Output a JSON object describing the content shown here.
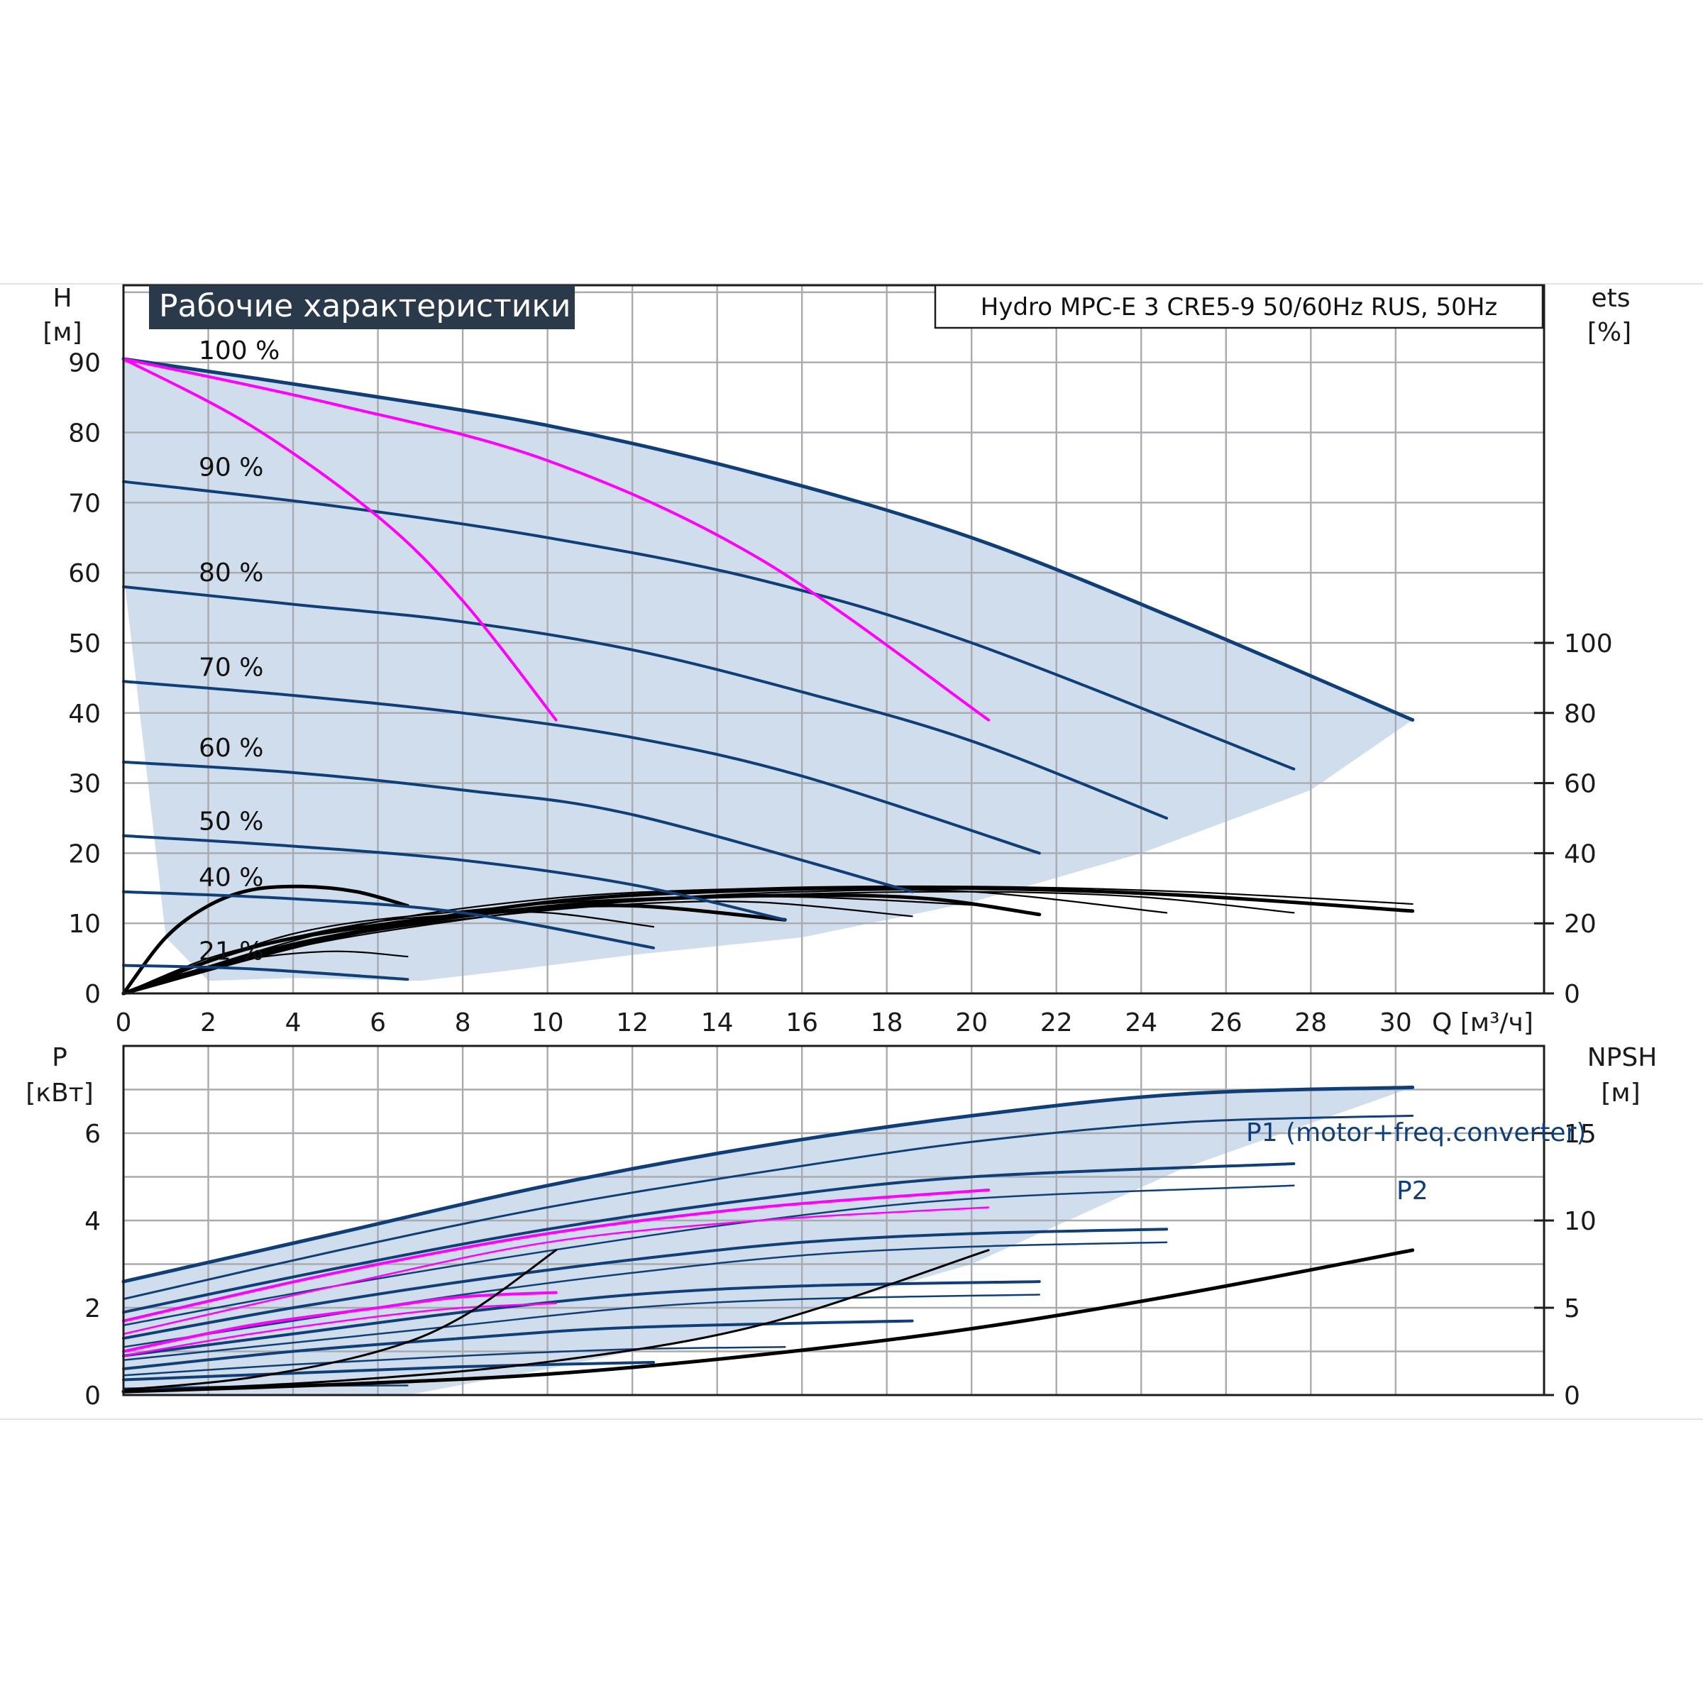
{
  "title_box": "Рабочие характеристики",
  "model_box": "Hydro MPC-E 3 CRE5-9 50/60Hz RUS, 50Hz",
  "colors": {
    "head": "#103f78",
    "bep": "#ff00ff",
    "eff": "#000000",
    "band": "#cfddec"
  },
  "chart_data": [
    {
      "type": "line",
      "panel": "top",
      "ylabel_top": "H",
      "ylabel_unit": "[м]",
      "y2label_top": "ets",
      "y2label_unit": "[%]",
      "xlabel": "Q [м³/ч]",
      "xlim": [
        0,
        33.5
      ],
      "ylim": [
        0,
        101
      ],
      "x_ticks": [
        0,
        2,
        4,
        6,
        8,
        10,
        12,
        14,
        16,
        18,
        20,
        22,
        24,
        26,
        28,
        30
      ],
      "y_ticks": [
        0,
        10,
        20,
        30,
        40,
        50,
        60,
        70,
        80,
        90
      ],
      "y2_ticks": [
        0,
        20,
        40,
        60,
        80,
        100
      ],
      "grid": true,
      "speed_curves": [
        {
          "name": "100 %",
          "x": [
            0,
            5,
            10,
            15,
            20,
            25,
            30.4
          ],
          "y": [
            90.5,
            86,
            81,
            74,
            65,
            53,
            39
          ]
        },
        {
          "name": "90 %",
          "x": [
            0,
            5,
            10,
            15,
            20,
            27.6
          ],
          "y": [
            73,
            69.5,
            65,
            59,
            50,
            32
          ]
        },
        {
          "name": "80 %",
          "x": [
            0,
            4,
            8,
            12,
            16,
            20,
            24.6
          ],
          "y": [
            58,
            55.5,
            53,
            49,
            43,
            36,
            25
          ]
        },
        {
          "name": "70 %",
          "x": [
            0,
            4,
            8,
            12,
            16,
            21.6
          ],
          "y": [
            44.5,
            42.5,
            40,
            36.5,
            31,
            20
          ]
        },
        {
          "name": "60 %",
          "x": [
            0,
            4,
            8,
            12,
            18.6
          ],
          "y": [
            33,
            31.5,
            29,
            25.5,
            14.5
          ]
        },
        {
          "name": "50 %",
          "x": [
            0,
            4,
            8,
            12,
            15.6
          ],
          "y": [
            22.5,
            21,
            19,
            15.5,
            10.5
          ]
        },
        {
          "name": "40 %",
          "x": [
            0,
            4,
            8,
            12.5
          ],
          "y": [
            14.5,
            13.5,
            11.5,
            6.5
          ]
        },
        {
          "name": "21 %",
          "x": [
            0,
            3,
            6.7
          ],
          "y": [
            4,
            3.5,
            2
          ]
        }
      ],
      "bep_curves": [
        {
          "x": [
            0,
            3,
            6,
            8,
            10.2
          ],
          "y": [
            90.5,
            81,
            68,
            56,
            39
          ]
        },
        {
          "x": [
            0,
            5,
            10,
            15,
            20.4
          ],
          "y": [
            90.5,
            84,
            76,
            62,
            39
          ]
        }
      ],
      "eff_curves": [
        {
          "x": [
            0,
            1,
            2,
            3,
            4.2,
            5.5,
            6.7
          ],
          "y": [
            0,
            16,
            25,
            29.5,
            30.5,
            29,
            25
          ]
        },
        {
          "x": [
            0,
            1.5,
            3,
            5,
            6.7
          ],
          "y": [
            0,
            6,
            10,
            12,
            10.5
          ]
        },
        {
          "x": [
            0,
            2,
            4,
            6,
            8,
            10,
            12.5
          ],
          "y": [
            0,
            10,
            16,
            20.5,
            22.5,
            23,
            19
          ]
        },
        {
          "x": [
            0,
            3,
            6,
            9,
            12,
            15.6
          ],
          "y": [
            0,
            13,
            19.5,
            23.5,
            25,
            21
          ]
        },
        {
          "x": [
            0,
            3,
            6,
            9,
            12,
            15,
            18.6
          ],
          "y": [
            0,
            11,
            18,
            22.5,
            25.5,
            26,
            22
          ]
        },
        {
          "x": [
            0,
            4,
            8,
            12,
            16,
            20.4
          ],
          "y": [
            0,
            17,
            23.5,
            27,
            27.5,
            25
          ]
        },
        {
          "x": [
            0,
            4,
            8,
            12,
            16,
            19,
            21.6
          ],
          "y": [
            0,
            14,
            22,
            26.5,
            28,
            27,
            22.5
          ]
        },
        {
          "x": [
            0,
            4,
            8,
            12,
            16,
            20,
            24.6
          ],
          "y": [
            0,
            13,
            21,
            26.5,
            29,
            29,
            23
          ]
        },
        {
          "x": [
            0,
            5,
            10,
            15,
            20,
            24,
            27.6
          ],
          "y": [
            0,
            16,
            25,
            28,
            29,
            27.5,
            23
          ]
        },
        {
          "x": [
            0,
            5,
            10,
            15,
            20,
            25,
            30.4
          ],
          "y": [
            0,
            16,
            26,
            29.5,
            30,
            28,
            23.5
          ]
        },
        {
          "x": [
            0,
            5,
            10,
            15,
            20,
            25,
            30.4
          ],
          "y": [
            0,
            18,
            27,
            30,
            30.5,
            29,
            25.5
          ]
        }
      ]
    },
    {
      "type": "line",
      "panel": "bottom",
      "ylabel_top": "P",
      "ylabel_unit": "[кВт]",
      "y2label_top": "NPSH",
      "y2label_unit": "[м]",
      "xlim": [
        0,
        33.5
      ],
      "ylim": [
        0,
        8
      ],
      "y_ticks": [
        0,
        2,
        4,
        6
      ],
      "y2_ticks": [
        0,
        5,
        10,
        15
      ],
      "series": [
        {
          "name": "P1 (motor+freq.converter)",
          "x": [
            0,
            5,
            10,
            15,
            20,
            25,
            30.4
          ],
          "y": [
            2.6,
            3.7,
            4.8,
            5.7,
            6.4,
            6.9,
            7.05
          ]
        },
        {
          "name": "P2",
          "x": [
            0,
            5,
            10,
            15,
            20,
            25,
            30.4
          ],
          "y": [
            2.2,
            3.3,
            4.3,
            5.1,
            5.8,
            6.25,
            6.4
          ]
        }
      ],
      "power_curves": [
        {
          "x": [
            0,
            5,
            10,
            15,
            20,
            27.6
          ],
          "y": [
            1.9,
            2.9,
            3.8,
            4.5,
            5.0,
            5.3
          ]
        },
        {
          "x": [
            0,
            5,
            10,
            15,
            20,
            27.6
          ],
          "y": [
            1.6,
            2.5,
            3.3,
            4.0,
            4.5,
            4.8
          ]
        },
        {
          "x": [
            0,
            4,
            8,
            12,
            16,
            20,
            24.6
          ],
          "y": [
            1.3,
            2.0,
            2.6,
            3.1,
            3.5,
            3.7,
            3.8
          ]
        },
        {
          "x": [
            0,
            4,
            8,
            12,
            16,
            20,
            24.6
          ],
          "y": [
            1.1,
            1.7,
            2.3,
            2.8,
            3.2,
            3.4,
            3.5
          ]
        },
        {
          "x": [
            0,
            4,
            8,
            12,
            16,
            21.6
          ],
          "y": [
            0.9,
            1.4,
            1.9,
            2.3,
            2.5,
            2.6
          ]
        },
        {
          "x": [
            0,
            4,
            8,
            12,
            16,
            21.6
          ],
          "y": [
            0.8,
            1.2,
            1.6,
            2.0,
            2.2,
            2.3
          ]
        },
        {
          "x": [
            0,
            4,
            8,
            12,
            18.6
          ],
          "y": [
            0.6,
            1.0,
            1.3,
            1.55,
            1.7
          ]
        },
        {
          "x": [
            0,
            4,
            8,
            12,
            15.6
          ],
          "y": [
            0.45,
            0.7,
            0.9,
            1.05,
            1.1
          ]
        },
        {
          "x": [
            0,
            4,
            8,
            12.5
          ],
          "y": [
            0.35,
            0.5,
            0.65,
            0.75
          ]
        },
        {
          "x": [
            0,
            3,
            6.7
          ],
          "y": [
            0.15,
            0.2,
            0.22
          ]
        }
      ],
      "bep_power_curves": [
        {
          "x": [
            0,
            5,
            10,
            15,
            20.4
          ],
          "y": [
            1.7,
            2.8,
            3.7,
            4.3,
            4.7
          ]
        },
        {
          "x": [
            0,
            5,
            10,
            15,
            20.4
          ],
          "y": [
            1.4,
            2.5,
            3.5,
            4.0,
            4.3
          ]
        },
        {
          "x": [
            0,
            3,
            6,
            8,
            10.2
          ],
          "y": [
            1.0,
            1.6,
            2.0,
            2.25,
            2.35
          ]
        },
        {
          "x": [
            0,
            3,
            6,
            8,
            10.2
          ],
          "y": [
            0.9,
            1.4,
            1.8,
            2.0,
            2.1
          ]
        }
      ],
      "npsh_curves": [
        {
          "x": [
            0,
            5,
            10,
            15,
            20,
            25,
            30.4
          ],
          "y": [
            0.2,
            0.6,
            1.2,
            2.3,
            3.8,
            5.8,
            8.3
          ]
        },
        {
          "x": [
            0,
            5,
            10,
            15,
            20.4
          ],
          "y": [
            0.2,
            0.8,
            1.9,
            4.0,
            8.3
          ]
        },
        {
          "x": [
            0,
            3,
            6,
            8,
            10.2
          ],
          "y": [
            0.3,
            1.0,
            2.5,
            4.5,
            8.3
          ]
        }
      ]
    }
  ]
}
